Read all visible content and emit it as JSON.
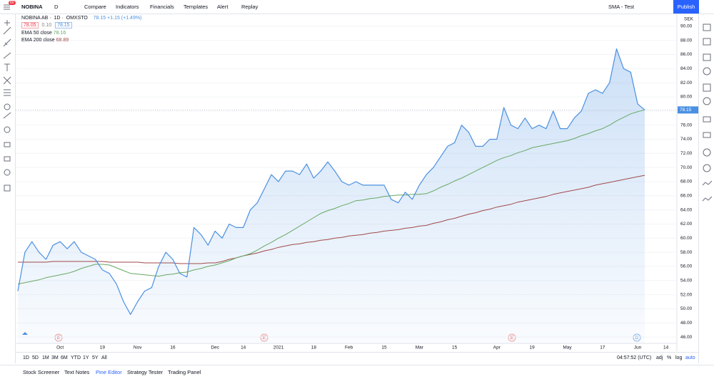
{
  "toolbar": {
    "symbol": "NOBINA",
    "interval": "D",
    "buttons": [
      "Compare",
      "Indicators",
      "Financials",
      "Templates",
      "Alert",
      "Replay"
    ],
    "layout": "SMA - Test",
    "publish": "Publish",
    "badge": "60"
  },
  "legend": {
    "symbol": "NOBINA AB",
    "interval": "1D",
    "exchange": "OMXSTO",
    "change": "+1.15 (+1.49%)",
    "bid": "78.05",
    "spread": "0.10"
  },
  "events": [
    "E",
    "E",
    "E",
    "D"
  ],
  "currency": "SEK",
  "range_buttons": [
    "1D",
    "5D",
    "1M",
    "3M",
    "6M",
    "YTD",
    "1Y",
    "5Y",
    "All"
  ],
  "clock": "04:57:52 (UTC)",
  "scale_options": [
    "adj",
    "%",
    "log",
    "auto"
  ],
  "bottom_tabs": [
    "Stock Screener",
    "Text Notes",
    "Pine Editor",
    "Strategy Tester",
    "Trading Panel"
  ],
  "chart_data": {
    "type": "line",
    "categories": [
      null,
      null,
      null,
      null,
      null,
      null,
      "Oct",
      null,
      null,
      null,
      null,
      null,
      "19",
      null,
      null,
      null,
      null,
      "Nov",
      null,
      null,
      null,
      null,
      "16",
      null,
      null,
      null,
      null,
      null,
      "Dec",
      null,
      null,
      null,
      "14",
      null,
      null,
      null,
      null,
      "2021",
      null,
      null,
      null,
      null,
      "18",
      null,
      null,
      null,
      null,
      "Feb",
      null,
      null,
      null,
      null,
      "15",
      null,
      null,
      null,
      null,
      "Mar",
      null,
      null,
      null,
      null,
      "15",
      null,
      null,
      null,
      null,
      null,
      "Apr",
      null,
      null,
      null,
      null,
      "19",
      null,
      null,
      null,
      null,
      "May",
      null,
      null,
      null,
      null,
      "17",
      null,
      null,
      null,
      null,
      "Jun",
      null,
      null,
      null,
      "14",
      null
    ],
    "series": [
      {
        "name": "NOBINA AB",
        "color": "#4a90e2",
        "values": [
          52.5,
          58,
          59.5,
          58,
          57,
          59,
          59.5,
          58.5,
          59.5,
          58,
          57.5,
          57,
          55.5,
          55,
          53.5,
          51,
          49.2,
          51,
          52.5,
          53,
          56,
          58,
          57,
          55,
          54.5,
          61.5,
          60.5,
          59,
          61,
          60,
          62,
          61.5,
          61.5,
          64,
          65,
          67,
          69,
          68,
          69.5,
          69.5,
          69,
          70.5,
          68.5,
          69.5,
          70.8,
          69.5,
          68,
          67.5,
          68,
          67.5,
          67.5,
          67.5,
          67.5,
          65.5,
          65,
          66.5,
          65.5,
          67.5,
          69,
          70,
          71.5,
          73,
          73.5,
          76,
          75,
          73,
          73,
          74,
          74,
          78.5,
          76,
          75.5,
          77,
          75.5,
          76,
          75.5,
          78,
          75.5,
          75.5,
          77,
          78,
          80.5,
          81,
          80.5,
          82,
          86.8,
          84,
          83.5,
          79,
          78.15,
          null,
          null,
          null,
          null
        ]
      },
      {
        "name": "EMA 50 close",
        "color": "#66a863",
        "values": [
          53.5,
          53.7,
          53.9,
          54.1,
          54.4,
          54.6,
          54.8,
          55,
          55.3,
          55.7,
          56,
          56.3,
          56.3,
          56.2,
          55.8,
          55.4,
          55,
          54.9,
          54.8,
          54.7,
          54.6,
          54.8,
          54.9,
          55.1,
          55.2,
          55.5,
          55.7,
          56,
          56.2,
          56.5,
          56.8,
          57.2,
          57.5,
          57.8,
          58.3,
          58.9,
          59.4,
          60,
          60.5,
          61.1,
          61.7,
          62.3,
          62.9,
          63.5,
          63.9,
          64.2,
          64.6,
          64.9,
          65.3,
          65.4,
          65.6,
          65.7,
          65.9,
          66,
          66.1,
          66.1,
          66.2,
          66.2,
          66.3,
          66.7,
          67.2,
          67.6,
          68.1,
          68.5,
          69,
          69.5,
          70,
          70.5,
          71,
          71.4,
          71.7,
          72.1,
          72.4,
          72.8,
          73,
          73.2,
          73.4,
          73.6,
          73.8,
          74.1,
          74.5,
          74.8,
          75.2,
          75.5,
          76,
          76.6,
          77.1,
          77.6,
          77.9,
          78.16,
          null,
          null,
          null,
          null
        ]
      },
      {
        "name": "EMA 200 close",
        "color": "#a04a48",
        "values": [
          56.6,
          56.6,
          56.6,
          56.6,
          56.6,
          56.7,
          56.7,
          56.7,
          56.7,
          56.7,
          56.7,
          56.7,
          56.7,
          56.6,
          56.6,
          56.6,
          56.6,
          56.6,
          56.5,
          56.5,
          56.5,
          56.5,
          56.5,
          56.4,
          56.4,
          56.4,
          56.4,
          56.5,
          56.5,
          56.7,
          57,
          57.2,
          57.5,
          57.7,
          57.9,
          58.2,
          58.4,
          58.7,
          58.9,
          59.1,
          59.2,
          59.4,
          59.5,
          59.7,
          59.8,
          60,
          60.1,
          60.3,
          60.4,
          60.5,
          60.7,
          60.8,
          61,
          61.1,
          61.2,
          61.4,
          61.5,
          61.7,
          61.8,
          62.1,
          62.3,
          62.6,
          62.8,
          63.1,
          63.4,
          63.6,
          63.9,
          64.1,
          64.4,
          64.6,
          64.8,
          65.1,
          65.3,
          65.5,
          65.7,
          65.9,
          66.2,
          66.4,
          66.6,
          66.8,
          67,
          67.2,
          67.5,
          67.7,
          67.9,
          68.1,
          68.3,
          68.5,
          68.7,
          68.89,
          null,
          null,
          null,
          null
        ]
      }
    ],
    "ylim": [
      45.1,
      91.7
    ],
    "yticks": [
      {
        "value": 46,
        "label": "46.00"
      },
      {
        "value": 48,
        "label": "48.00"
      },
      {
        "value": 50,
        "label": "50.00"
      },
      {
        "value": 52,
        "label": "52.00"
      },
      {
        "value": 54,
        "label": "54.00"
      },
      {
        "value": 56,
        "label": "56.00"
      },
      {
        "value": 58,
        "label": "58.00"
      },
      {
        "value": 60,
        "label": "60.00"
      },
      {
        "value": 62,
        "label": "62.00"
      },
      {
        "value": 64,
        "label": "64.00"
      },
      {
        "value": 66,
        "label": "66.00"
      },
      {
        "value": 68,
        "label": "68.00"
      },
      {
        "value": 70,
        "label": "70.00"
      },
      {
        "value": 72,
        "label": "72.00"
      },
      {
        "value": 74,
        "label": "74.00"
      },
      {
        "value": 76,
        "label": "76.00"
      },
      {
        "value": 78,
        "label": "78.00"
      },
      {
        "value": 80,
        "label": "80.00"
      },
      {
        "value": 82,
        "label": "82.00"
      },
      {
        "value": 84,
        "label": "84.00"
      },
      {
        "value": 86,
        "label": "86.00"
      },
      {
        "value": 88,
        "label": "88.00"
      },
      {
        "value": 90,
        "label": "90.00"
      }
    ],
    "grid": true
  }
}
